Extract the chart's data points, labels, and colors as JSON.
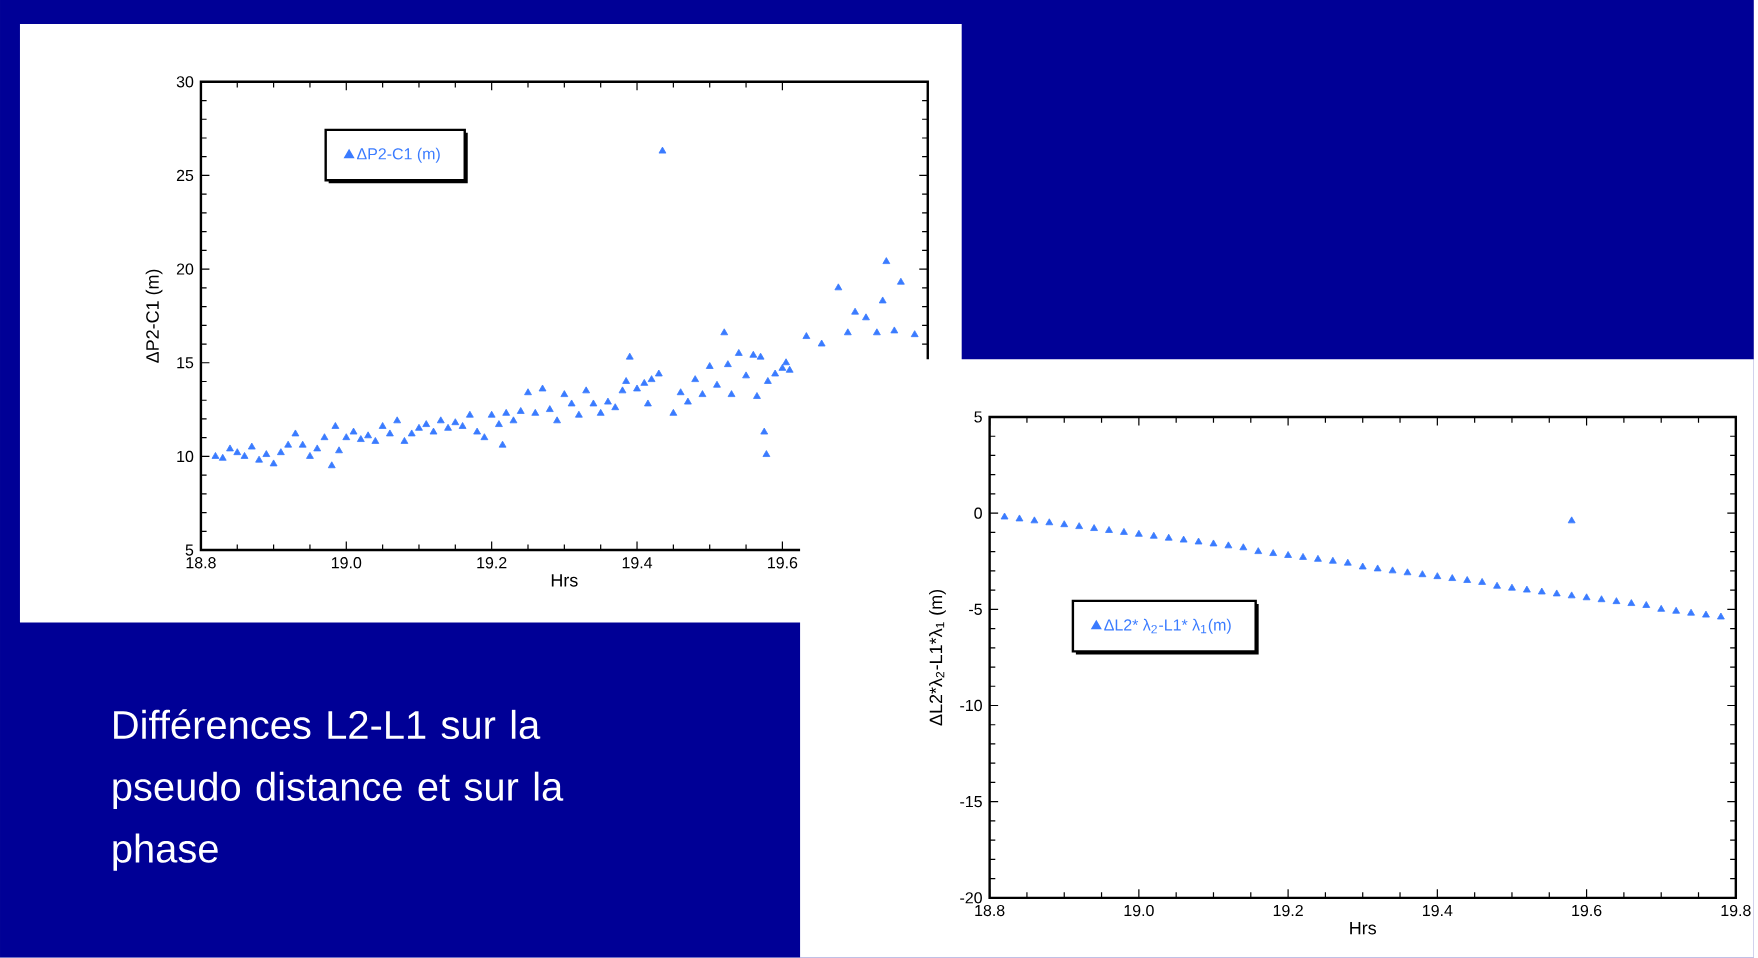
{
  "chart_data": [
    {
      "type": "scatter",
      "xlabel": "Hrs",
      "ylabel": "ΔP2-C1 (m)",
      "xlim": [
        18.8,
        19.8
      ],
      "ylim": [
        5,
        30
      ],
      "xticks": [
        {
          "value": 18.8,
          "label": "18.8"
        },
        {
          "value": 19.0,
          "label": "19.0"
        },
        {
          "value": 19.2,
          "label": "19.2"
        },
        {
          "value": 19.4,
          "label": "19.4"
        },
        {
          "value": 19.6,
          "label": "19.6"
        }
      ],
      "yticks": [
        5,
        10,
        15,
        20,
        25,
        30
      ],
      "marker": "triangle",
      "legend": "top left",
      "grid": false,
      "annotations": [
        "Différences L2-L1 sur la pseudo distance et sur la phase"
      ],
      "series": [
        {
          "name": "ΔP2-C1 (m)",
          "color": "#3a7bff",
          "x": [
            18.82,
            18.83,
            18.84,
            18.85,
            18.86,
            18.87,
            18.88,
            18.89,
            18.9,
            18.91,
            18.92,
            18.93,
            18.94,
            18.95,
            18.96,
            18.97,
            18.98,
            18.985,
            18.99,
            19.0,
            19.01,
            19.02,
            19.03,
            19.04,
            19.05,
            19.06,
            19.07,
            19.08,
            19.09,
            19.1,
            19.11,
            19.12,
            19.13,
            19.14,
            19.15,
            19.16,
            19.17,
            19.18,
            19.19,
            19.2,
            19.21,
            19.215,
            19.22,
            19.23,
            19.24,
            19.25,
            19.26,
            19.27,
            19.28,
            19.29,
            19.3,
            19.31,
            19.32,
            19.33,
            19.34,
            19.35,
            19.36,
            19.37,
            19.38,
            19.385,
            19.39,
            19.4,
            19.41,
            19.415,
            19.42,
            19.43,
            19.435,
            19.45,
            19.46,
            19.47,
            19.48,
            19.49,
            19.5,
            19.51,
            19.52,
            19.525,
            19.53,
            19.54,
            19.55,
            19.56,
            19.565,
            19.57,
            19.575,
            19.578,
            19.58,
            19.59,
            19.6,
            19.605,
            19.61,
            19.633,
            19.654,
            19.677,
            19.69,
            19.7,
            19.715,
            19.73,
            19.738,
            19.743,
            19.754,
            19.763,
            19.782
          ],
          "values": [
            10.0,
            9.9,
            10.4,
            10.2,
            10.0,
            10.5,
            9.8,
            10.1,
            9.6,
            10.2,
            10.6,
            11.2,
            10.6,
            10.0,
            10.4,
            11.0,
            9.5,
            11.6,
            10.3,
            11.0,
            11.3,
            10.9,
            11.1,
            10.8,
            11.6,
            11.2,
            11.9,
            10.8,
            11.2,
            11.5,
            11.7,
            11.3,
            11.9,
            11.5,
            11.8,
            11.6,
            12.2,
            11.3,
            11.0,
            12.2,
            11.7,
            10.6,
            12.3,
            11.9,
            12.4,
            13.4,
            12.3,
            13.6,
            12.5,
            11.9,
            13.3,
            12.8,
            12.2,
            13.5,
            12.8,
            12.3,
            12.9,
            12.6,
            13.5,
            14.0,
            15.3,
            13.6,
            13.9,
            12.8,
            14.1,
            14.4,
            26.3,
            12.3,
            13.4,
            12.9,
            14.1,
            13.3,
            14.8,
            13.8,
            16.6,
            14.9,
            13.3,
            15.5,
            14.3,
            15.4,
            13.2,
            15.3,
            11.3,
            10.1,
            14.0,
            14.4,
            14.7,
            15.0,
            14.6,
            16.4,
            16.0,
            19.0,
            16.6,
            17.7,
            17.4,
            16.6,
            18.3,
            20.4,
            16.7,
            19.3,
            16.5
          ]
        }
      ]
    },
    {
      "type": "scatter",
      "xlabel": "Hrs",
      "ylabel": "ΔL2*λ$_{2}$-L1*λ$_{1}$ (m)",
      "xlim": [
        18.8,
        19.8
      ],
      "ylim": [
        -20,
        5
      ],
      "xticks": [
        {
          "value": 18.8,
          "label": "18.8"
        },
        {
          "value": 19.0,
          "label": "19.0"
        },
        {
          "value": 19.2,
          "label": "19.2"
        },
        {
          "value": 19.4,
          "label": "19.4"
        },
        {
          "value": 19.6,
          "label": "19.6"
        },
        {
          "value": 19.8,
          "label": "19.8"
        }
      ],
      "yticks": [
        -20,
        -15,
        -10,
        -5,
        0,
        5
      ],
      "marker": "triangle",
      "legend": "left",
      "grid": false,
      "series": [
        {
          "name": "ΔL2* λ$_{2}$-L1* λ$_{1}$(m)",
          "color": "#3a7bff",
          "x": [
            18.82,
            18.84,
            18.86,
            18.88,
            18.9,
            18.92,
            18.94,
            18.96,
            18.98,
            19.0,
            19.02,
            19.04,
            19.06,
            19.08,
            19.1,
            19.12,
            19.14,
            19.16,
            19.18,
            19.2,
            19.22,
            19.24,
            19.26,
            19.28,
            19.3,
            19.32,
            19.34,
            19.36,
            19.38,
            19.4,
            19.42,
            19.44,
            19.46,
            19.48,
            19.5,
            19.52,
            19.54,
            19.56,
            19.58,
            19.6,
            19.62,
            19.64,
            19.66,
            19.68,
            19.7,
            19.72,
            19.74,
            19.76,
            19.78,
            19.58
          ],
          "values": [
            -0.2,
            -0.3,
            -0.4,
            -0.5,
            -0.6,
            -0.7,
            -0.8,
            -0.9,
            -1.0,
            -1.1,
            -1.2,
            -1.3,
            -1.4,
            -1.5,
            -1.6,
            -1.7,
            -1.8,
            -2.0,
            -2.1,
            -2.2,
            -2.3,
            -2.4,
            -2.5,
            -2.6,
            -2.8,
            -2.9,
            -3.0,
            -3.1,
            -3.2,
            -3.3,
            -3.4,
            -3.5,
            -3.6,
            -3.8,
            -3.9,
            -4.0,
            -4.1,
            -4.2,
            -4.3,
            -4.4,
            -4.5,
            -4.6,
            -4.7,
            -4.8,
            -5.0,
            -5.1,
            -5.2,
            -5.3,
            -5.4,
            -0.4
          ]
        }
      ]
    }
  ]
}
